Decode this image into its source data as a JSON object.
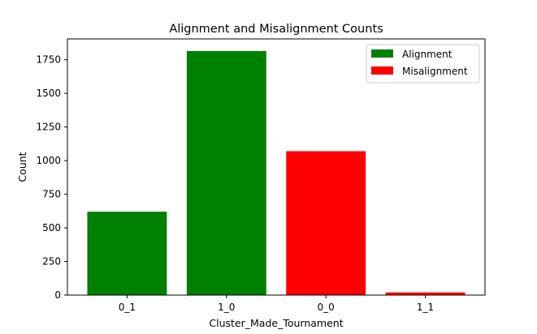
{
  "chart_data": {
    "type": "bar",
    "title": "Alignment and Misalignment Counts",
    "xlabel": "Cluster_Made_Tournament",
    "ylabel": "Count",
    "categories": [
      "0_1",
      "1_0",
      "0_0",
      "1_1"
    ],
    "values": [
      620,
      1815,
      1070,
      20
    ],
    "bar_groups": [
      "Alignment",
      "Alignment",
      "Misalignment",
      "Misalignment"
    ],
    "ylim": [
      0,
      1905
    ],
    "yticks": [
      0,
      250,
      500,
      750,
      1000,
      1250,
      1500,
      1750
    ],
    "grid": false,
    "legend": {
      "placement": "top-right",
      "entries": [
        {
          "label": "Alignment",
          "color": "#008000"
        },
        {
          "label": "Misalignment",
          "color": "#ff0000"
        }
      ]
    }
  }
}
